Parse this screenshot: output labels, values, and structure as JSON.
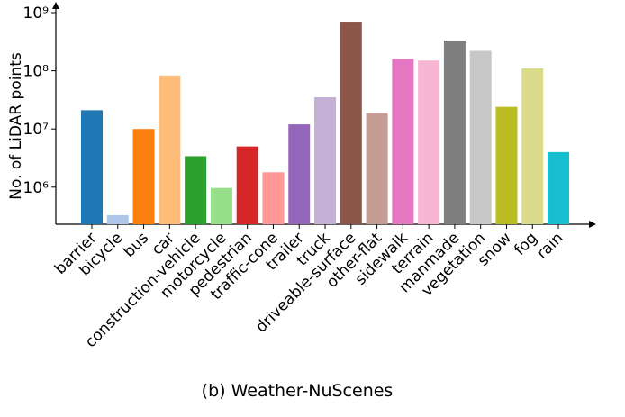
{
  "chart_data": {
    "type": "bar",
    "y_label": "No. of LiDAR points",
    "caption": "(b) Weather-NuScenes",
    "log_scale": true,
    "categories": [
      "barrier",
      "bicycle",
      "bus",
      "car",
      "construction-vehicle",
      "motorcycle",
      "pedestrian",
      "traffic-cone",
      "trailer",
      "truck",
      "driveable-surface",
      "other-flat",
      "sidewalk",
      "terrain",
      "manmade",
      "vegetation",
      "snow",
      "fog",
      "rain"
    ],
    "values": [
      21000000,
      330000,
      10000000,
      83000000,
      3400000,
      970000,
      5000000,
      1800000,
      12000000,
      35000000,
      700000000,
      19000000,
      160000000,
      150000000,
      330000000,
      220000000,
      24000000,
      110000000,
      4000000
    ],
    "colors": [
      "#1f77b4",
      "#aec7e8",
      "#ff7f0e",
      "#ffbb78",
      "#2ca02c",
      "#98df8a",
      "#d62728",
      "#ff9896",
      "#9467bd",
      "#c5b0d5",
      "#8c564b",
      "#c49c94",
      "#e377c2",
      "#f7b6d2",
      "#7f7f7f",
      "#c7c7c7",
      "#bcbd22",
      "#dbdb8d",
      "#17becf"
    ],
    "ylim": [
      230000,
      1380000000
    ],
    "yticks": [
      {
        "value": 1000000,
        "label": "10⁶"
      },
      {
        "value": 10000000,
        "label": "10⁷"
      },
      {
        "value": 100000000,
        "label": "10⁸"
      },
      {
        "value": 1000000000,
        "label": "10⁹"
      }
    ]
  }
}
